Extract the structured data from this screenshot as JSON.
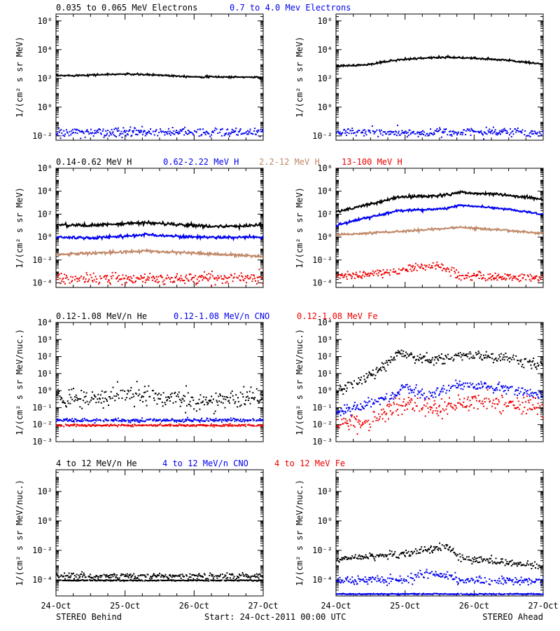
{
  "colors": {
    "black": "#000000",
    "blue": "#0000ee",
    "tan": "#c08868",
    "red": "#ee0000"
  },
  "footer": {
    "x_ticks": [
      "24-Oct",
      "25-Oct",
      "26-Oct",
      "27-Oct"
    ],
    "left_label": "STEREO Behind",
    "center_label": "Start: 24-Oct-2011 00:00 UTC",
    "right_label": "STEREO Ahead"
  },
  "chart_data": [
    {
      "type": "scatter",
      "row_title": [
        "0.035 to 0.065 MeV Electrons",
        "0.7 to 4.0 Mev Electrons"
      ],
      "ylabel": "1/(cm² s sr MeV)",
      "y_scale": "log",
      "ylim": [
        0.005,
        3000000.0
      ],
      "ytick_exponents": [
        -2,
        0,
        2,
        4,
        6
      ],
      "x_range_days": [
        0,
        3
      ],
      "panels": [
        {
          "spacecraft": "STEREO Behind",
          "series": [
            {
              "color": "black",
              "anchors": [
                [
                  0,
                  150
                ],
                [
                  1,
                  200
                ],
                [
                  1.5,
                  170
                ],
                [
                  2,
                  130
                ],
                [
                  3,
                  120
                ]
              ],
              "noise": 0.05,
              "style": "line"
            },
            {
              "color": "blue",
              "anchors": [
                [
                  0,
                  0.02
                ],
                [
                  3,
                  0.02
                ]
              ],
              "noise": 0.15,
              "style": "scatter"
            }
          ]
        },
        {
          "spacecraft": "STEREO Ahead",
          "series": [
            {
              "color": "black",
              "anchors": [
                [
                  0,
                  700
                ],
                [
                  0.5,
                  900
                ],
                [
                  0.8,
                  1800
                ],
                [
                  1.2,
                  2500
                ],
                [
                  1.6,
                  3000
                ],
                [
                  2,
                  2500
                ],
                [
                  2.5,
                  1800
                ],
                [
                  3,
                  1000
                ]
              ],
              "noise": 0.06,
              "style": "line"
            },
            {
              "color": "blue",
              "anchors": [
                [
                  0,
                  0.02
                ],
                [
                  3,
                  0.02
                ]
              ],
              "noise": 0.15,
              "style": "scatter"
            }
          ]
        }
      ]
    },
    {
      "type": "scatter",
      "row_title": [
        "0.14-0.62 MeV H",
        "0.62-2.22 MeV H",
        "2.2-12 MeV H",
        "13-100 MeV H"
      ],
      "ylabel": "1/(cm² s sr MeV)",
      "y_scale": "log",
      "ylim": [
        4e-05,
        1000000.0
      ],
      "ytick_exponents": [
        -4,
        -2,
        0,
        2,
        4,
        6
      ],
      "x_range_days": [
        0,
        3
      ],
      "panels": [
        {
          "spacecraft": "STEREO Behind",
          "series": [
            {
              "color": "black",
              "anchors": [
                [
                  0,
                  12
                ],
                [
                  0.5,
                  10
                ],
                [
                  1.3,
                  18
                ],
                [
                  2,
                  10
                ],
                [
                  2.5,
                  8
                ],
                [
                  3,
                  12
                ]
              ],
              "noise": 0.12,
              "style": "line"
            },
            {
              "color": "blue",
              "anchors": [
                [
                  0,
                  1
                ],
                [
                  0.5,
                  0.8
                ],
                [
                  1.3,
                  1.6
                ],
                [
                  2,
                  1
                ],
                [
                  3,
                  0.9
                ]
              ],
              "noise": 0.1,
              "style": "line"
            },
            {
              "color": "tan",
              "anchors": [
                [
                  0,
                  0.03
                ],
                [
                  1.3,
                  0.06
                ],
                [
                  2,
                  0.04
                ],
                [
                  3,
                  0.02
                ]
              ],
              "noise": 0.1,
              "style": "line"
            },
            {
              "color": "red",
              "anchors": [
                [
                  0,
                  0.0003
                ],
                [
                  3,
                  0.0003
                ]
              ],
              "noise": 0.25,
              "style": "scatter"
            }
          ]
        },
        {
          "spacecraft": "STEREO Ahead",
          "series": [
            {
              "color": "black",
              "anchors": [
                [
                  0,
                  150
                ],
                [
                  0.3,
                  400
                ],
                [
                  0.9,
                  3000
                ],
                [
                  1.5,
                  4000
                ],
                [
                  1.8,
                  8000
                ],
                [
                  2.4,
                  5000
                ],
                [
                  3,
                  2000
                ]
              ],
              "noise": 0.1,
              "style": "line"
            },
            {
              "color": "blue",
              "anchors": [
                [
                  0,
                  10
                ],
                [
                  0.3,
                  30
                ],
                [
                  0.9,
                  200
                ],
                [
                  1.6,
                  300
                ],
                [
                  1.8,
                  600
                ],
                [
                  2.4,
                  300
                ],
                [
                  3,
                  100
                ]
              ],
              "noise": 0.08,
              "style": "line"
            },
            {
              "color": "tan",
              "anchors": [
                [
                  0,
                  1.5
                ],
                [
                  0.9,
                  3
                ],
                [
                  1.8,
                  7
                ],
                [
                  2.4,
                  4
                ],
                [
                  3,
                  2
                ]
              ],
              "noise": 0.08,
              "style": "line"
            },
            {
              "color": "red",
              "anchors": [
                [
                  0,
                  0.0005
                ],
                [
                  0.7,
                  0.0008
                ],
                [
                  1,
                  0.002
                ],
                [
                  1.5,
                  0.004
                ],
                [
                  1.8,
                  0.0004
                ],
                [
                  3,
                  0.0003
                ]
              ],
              "noise": 0.18,
              "style": "scatter"
            }
          ]
        }
      ]
    },
    {
      "type": "scatter",
      "row_title": [
        "0.12-1.08 MeV/n He",
        "0.12-1.08 MeV/n CNO",
        "0.12-1.08 MeV Fe"
      ],
      "ylabel": "1/(cm² s sr MeV/nuc.)",
      "y_scale": "log",
      "ylim": [
        0.001,
        10000
      ],
      "ytick_exponents": [
        -3,
        -2,
        -1,
        0,
        1,
        2,
        3,
        4
      ],
      "x_range_days": [
        0,
        3
      ],
      "panels": [
        {
          "spacecraft": "STEREO Behind",
          "series": [
            {
              "color": "black",
              "anchors": [
                [
                  0,
                  0.5
                ],
                [
                  0.5,
                  0.3
                ],
                [
                  1,
                  0.8
                ],
                [
                  1.5,
                  0.5
                ],
                [
                  2,
                  0.25
                ],
                [
                  2.5,
                  0.3
                ],
                [
                  3,
                  0.5
                ]
              ],
              "noise": 0.3,
              "style": "scatter"
            },
            {
              "color": "blue",
              "anchors": [
                [
                  0,
                  0.02
                ],
                [
                  3,
                  0.02
                ]
              ],
              "noise": 0.05,
              "style": "scatter"
            },
            {
              "color": "red",
              "anchors": [
                [
                  0,
                  0.01
                ],
                [
                  3,
                  0.01
                ]
              ],
              "noise": 0.03,
              "style": "scatter"
            }
          ]
        },
        {
          "spacecraft": "STEREO Ahead",
          "series": [
            {
              "color": "black",
              "anchors": [
                [
                  0,
                  1
                ],
                [
                  0.3,
                  3
                ],
                [
                  0.7,
                  30
                ],
                [
                  0.9,
                  200
                ],
                [
                  1.2,
                  80
                ],
                [
                  1.6,
                  80
                ],
                [
                  1.8,
                  130
                ],
                [
                  2.4,
                  90
                ],
                [
                  3,
                  40
                ]
              ],
              "noise": 0.15,
              "style": "scatter"
            },
            {
              "color": "blue",
              "anchors": [
                [
                  0,
                  0.06
                ],
                [
                  0.3,
                  0.1
                ],
                [
                  0.8,
                  0.5
                ],
                [
                  1,
                  2
                ],
                [
                  1.3,
                  0.6
                ],
                [
                  1.8,
                  2.5
                ],
                [
                  2.4,
                  1.5
                ],
                [
                  3,
                  0.6
                ]
              ],
              "noise": 0.15,
              "style": "scatter"
            },
            {
              "color": "red",
              "anchors": [
                [
                  0,
                  0.01
                ],
                [
                  0.5,
                  0.02
                ],
                [
                  0.8,
                  0.08
                ],
                [
                  1,
                  0.15
                ],
                [
                  1.5,
                  0.1
                ],
                [
                  1.9,
                  0.25
                ],
                [
                  2.4,
                  0.2
                ],
                [
                  3,
                  0.1
                ]
              ],
              "noise": 0.25,
              "style": "scatter"
            }
          ]
        }
      ]
    },
    {
      "type": "scatter",
      "row_title": [
        "4 to 12 MeV/n He",
        "4 to 12 MeV/n CNO",
        "4 to 12 MeV Fe"
      ],
      "ylabel": "1/(cm² s sr MeV/nuc.)",
      "y_scale": "log",
      "ylim": [
        8e-06,
        3000
      ],
      "ytick_exponents": [
        -4,
        -2,
        0,
        2
      ],
      "x_range_days": [
        0,
        3
      ],
      "panels": [
        {
          "spacecraft": "STEREO Behind",
          "series": [
            {
              "color": "black",
              "anchors": [
                [
                  0,
                  0.0001
                ],
                [
                  3,
                  0.0001
                ]
              ],
              "noise": 0.02,
              "style": "scatter"
            },
            {
              "color": "black",
              "anchors": [
                [
                  0,
                  0.0002
                ],
                [
                  3,
                  0.0002
                ]
              ],
              "noise": 0.1,
              "style": "scatter"
            }
          ]
        },
        {
          "spacecraft": "STEREO Ahead",
          "series": [
            {
              "color": "black",
              "anchors": [
                [
                  0,
                  0.003
                ],
                [
                  0.5,
                  0.004
                ],
                [
                  0.9,
                  0.006
                ],
                [
                  1.3,
                  0.01
                ],
                [
                  1.6,
                  0.02
                ],
                [
                  1.8,
                  0.003
                ],
                [
                  2.4,
                  0.002
                ],
                [
                  3,
                  0.0008
                ]
              ],
              "noise": 0.12,
              "style": "scatter"
            },
            {
              "color": "blue",
              "anchors": [
                [
                  0,
                  0.0001
                ],
                [
                  0.9,
                  0.0001
                ],
                [
                  1.3,
                  0.0003
                ],
                [
                  1.6,
                  0.0002
                ],
                [
                  1.8,
                  0.0001
                ],
                [
                  3,
                  0.0001
                ]
              ],
              "noise": 0.15,
              "style": "scatter"
            },
            {
              "color": "blue",
              "anchors": [
                [
                  0,
                  1.2e-05
                ],
                [
                  3,
                  1.2e-05
                ]
              ],
              "noise": 0.02,
              "style": "scatter"
            }
          ]
        }
      ]
    }
  ]
}
